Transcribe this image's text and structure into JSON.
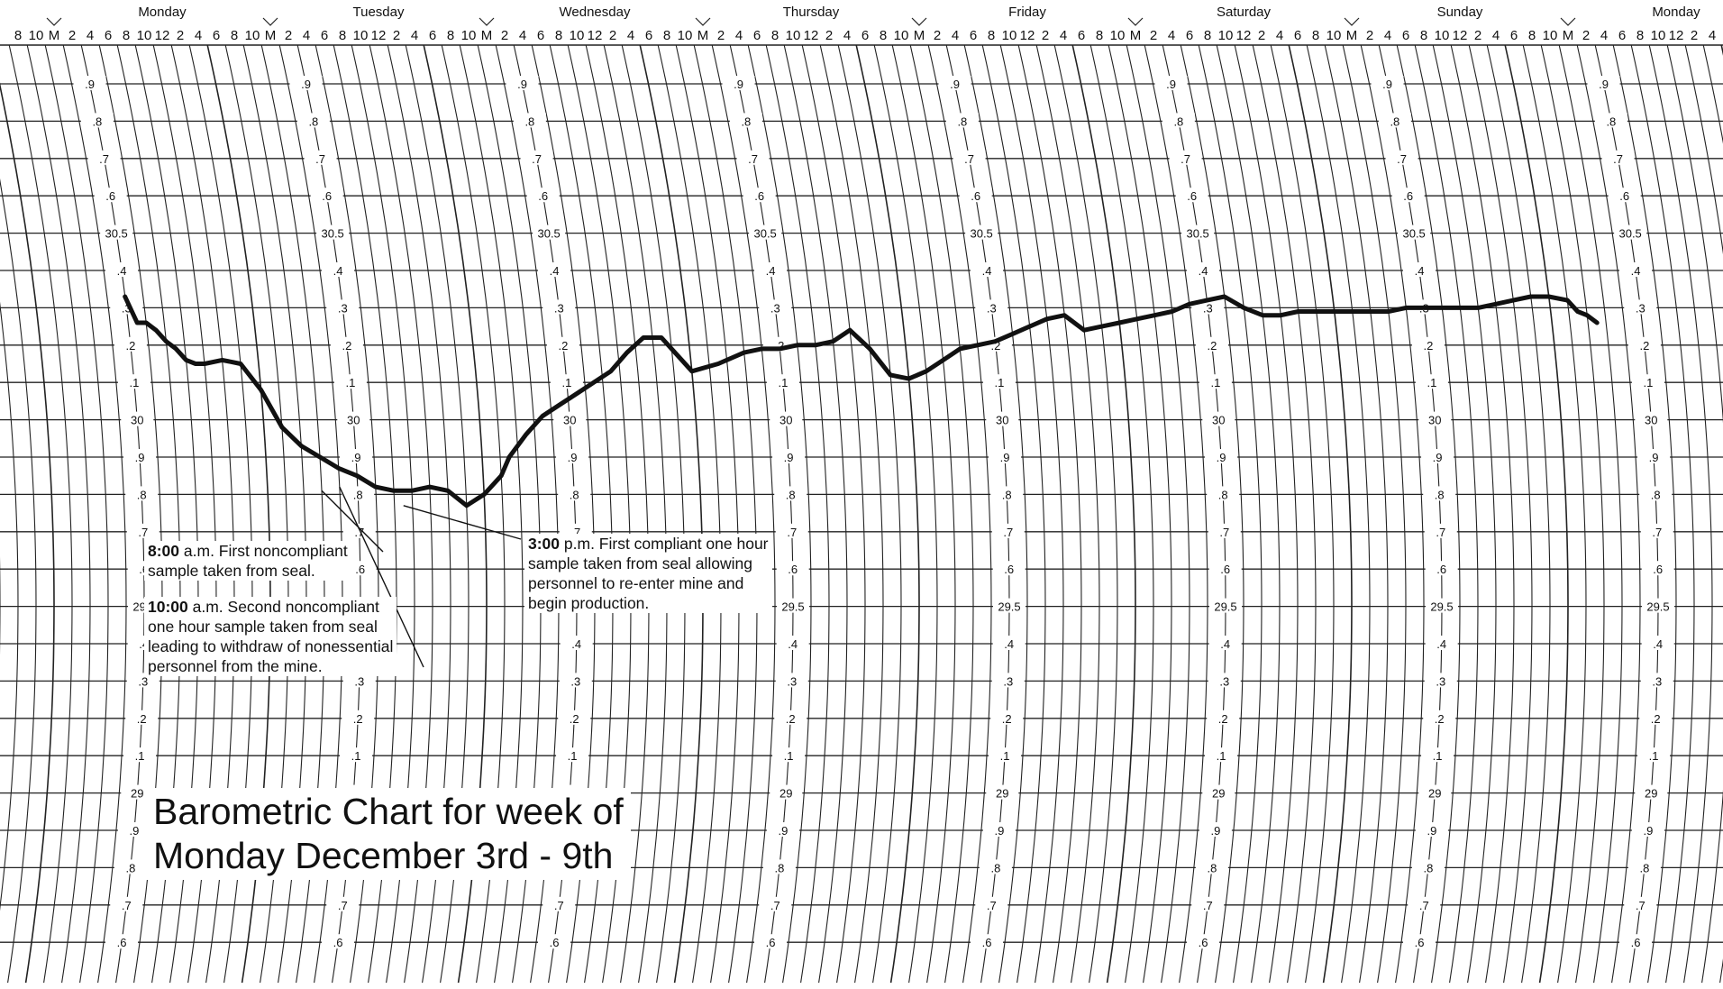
{
  "chart_data": {
    "type": "line",
    "title_lines": [
      "Barometric Chart for week of",
      "Monday December 3rd - 9th"
    ],
    "days": [
      "Monday",
      "Tuesday",
      "Wednesday",
      "Thursday",
      "Friday",
      "Saturday",
      "Sunday",
      "Monday"
    ],
    "hour_ticks": [
      "M",
      "2",
      "4",
      "6",
      "8",
      "10",
      "12",
      "2",
      "4",
      "6",
      "8",
      "10"
    ],
    "pressure_scale_labels": [
      ".9",
      ".8",
      ".7",
      ".6",
      "30.5",
      ".4",
      ".3",
      ".2",
      ".1",
      "30",
      ".9",
      ".8",
      ".7",
      ".6",
      "29.5",
      ".4",
      ".3",
      ".2",
      ".1",
      "29",
      ".9",
      ".8",
      ".7",
      ".6"
    ],
    "ylim": [
      28.6,
      30.9
    ],
    "xunit": "hours since Monday midnight",
    "series": [
      {
        "x": [
          10,
          11,
          12,
          13,
          14,
          15,
          16,
          17,
          18,
          20,
          22,
          24,
          26,
          28,
          30,
          32,
          34,
          36,
          38,
          40,
          42,
          44,
          46,
          48,
          50,
          51,
          53,
          55,
          57,
          59,
          61,
          63,
          65,
          67,
          69,
          72,
          75,
          78,
          80,
          82,
          84,
          86,
          88,
          90,
          92,
          94,
          96,
          98,
          100,
          102,
          104,
          106,
          108,
          110,
          112,
          114,
          116,
          118,
          120,
          122,
          124,
          126,
          128,
          130,
          132,
          134,
          136,
          138,
          140,
          142,
          144,
          146,
          148,
          150,
          152,
          154,
          156,
          158,
          160,
          162,
          164,
          166,
          168,
          170,
          171,
          172,
          173
        ],
        "values": [
          30.33,
          30.26,
          30.26,
          30.24,
          30.21,
          30.19,
          30.16,
          30.15,
          30.15,
          30.16,
          30.15,
          30.08,
          29.98,
          29.93,
          29.9,
          29.87,
          29.85,
          29.82,
          29.81,
          29.81,
          29.82,
          29.81,
          29.77,
          29.8,
          29.85,
          29.9,
          29.96,
          30.01,
          30.04,
          30.07,
          30.1,
          30.13,
          30.18,
          30.22,
          30.22,
          30.13,
          30.15,
          30.18,
          30.19,
          30.19,
          30.2,
          30.2,
          30.21,
          30.24,
          30.19,
          30.12,
          30.11,
          30.13,
          30.16,
          30.19,
          30.2,
          30.21,
          30.23,
          30.25,
          30.27,
          30.28,
          30.24,
          30.25,
          30.26,
          30.27,
          30.28,
          30.29,
          30.31,
          30.32,
          30.33,
          30.3,
          30.28,
          30.28,
          30.29,
          30.29,
          30.29,
          30.29,
          30.29,
          30.29,
          30.3,
          30.3,
          30.3,
          30.3,
          30.3,
          30.31,
          30.32,
          30.33,
          30.33,
          30.32,
          30.29,
          30.28,
          30.26
        ]
      }
    ],
    "annotations": [
      {
        "time": "8:00",
        "text": " a.m. First noncompliant\nsample taken from seal."
      },
      {
        "time": "10:00",
        "text": " a.m. Second noncompliant\none hour sample taken from seal\nleading to withdraw of nonessential\npersonnel from the mine."
      },
      {
        "time": "3:00",
        "text": " p.m. First compliant one hour\nsample taken from seal allowing\npersonnel to re-enter mine and\nbegin production."
      }
    ],
    "grid": true
  }
}
